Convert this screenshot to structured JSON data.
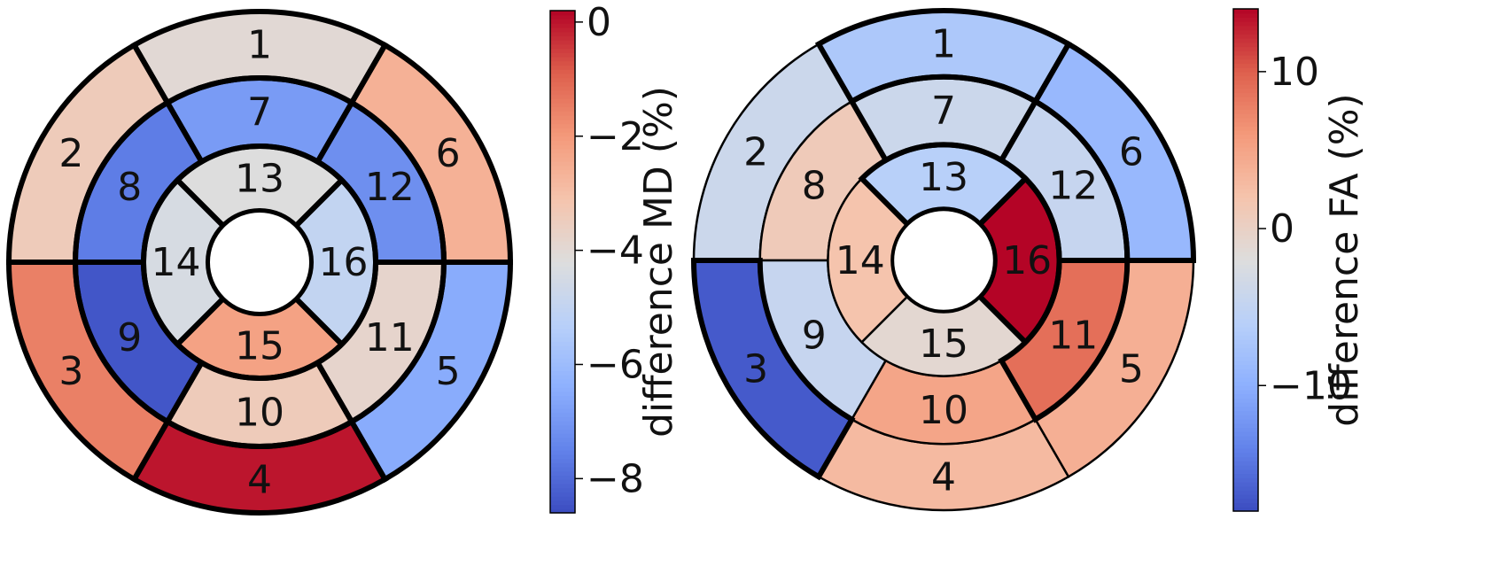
{
  "chart_data": [
    {
      "type": "bullseye",
      "segment_values": {
        "1": -4.0,
        "2": -3.4,
        "3": -1.5,
        "4": 0.0,
        "5": -6.5,
        "6": -2.6,
        "7": -6.9,
        "8": -7.6,
        "9": -8.4,
        "10": -3.4,
        "11": -3.8,
        "12": -7.2,
        "13": -4.2,
        "14": -4.4,
        "15": -2.2,
        "16": -5.0
      },
      "colorbar": {
        "label": "difference MD (%)",
        "min": -8.6,
        "max": 0.2,
        "ticks": [
          0,
          -2,
          -4,
          -6,
          -8
        ],
        "tick_labels": [
          "0",
          "−2",
          "−4",
          "−6",
          "−8"
        ]
      }
    },
    {
      "type": "bullseye",
      "segment_values": {
        "1": -7.0,
        "2": -4.0,
        "3": -17.0,
        "4": 3.0,
        "5": 4.0,
        "6": -9.0,
        "7": -4.0,
        "8": 1.0,
        "9": -4.5,
        "10": 5.0,
        "11": 9.0,
        "12": -4.5,
        "13": -6.0,
        "14": 2.0,
        "15": -1.0,
        "16": 14.0
      },
      "colorbar": {
        "label": "difference FA (%)",
        "min": -18.0,
        "max": 14.0,
        "ticks": [
          10,
          0,
          -10
        ],
        "tick_labels": [
          "10",
          "0",
          "−10"
        ]
      }
    }
  ]
}
